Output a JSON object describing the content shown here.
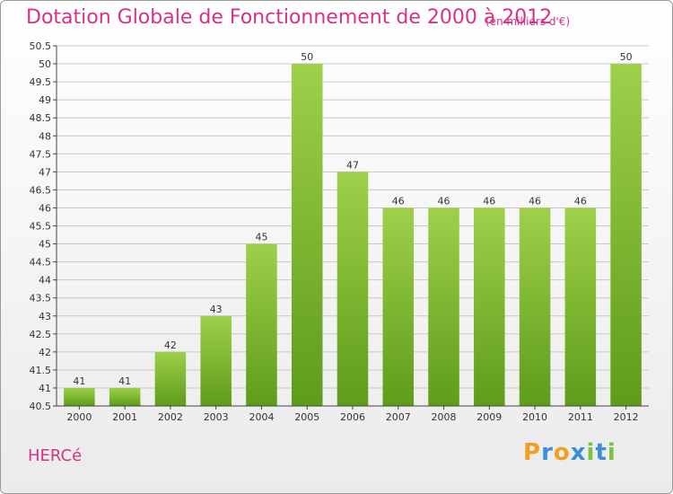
{
  "title": "Dotation Globale de Fonctionnement de 2000 à 2012",
  "subtitle": "(en milliers d'€)",
  "commune": "HERCé",
  "logo": {
    "letters": [
      "P",
      "r",
      "o",
      "x",
      "i",
      "t",
      "i"
    ],
    "colors": [
      "#f0a020",
      "#3a8fd8",
      "#f0a020",
      "#3a8fd8",
      "#7cc242",
      "#3a8fd8",
      "#7cc242"
    ]
  },
  "colors": {
    "title": "#d63384",
    "bar_light": "#9ed04a",
    "bar_dark": "#5e9c1a",
    "grid": "#c8c8c8",
    "axis": "#444444"
  },
  "chart_data": {
    "type": "bar",
    "title": "Dotation Globale de Fonctionnement de 2000 à 2012",
    "subtitle": "(en milliers d'€)",
    "xlabel": "",
    "ylabel": "",
    "categories": [
      "2000",
      "2001",
      "2002",
      "2003",
      "2004",
      "2005",
      "2006",
      "2007",
      "2008",
      "2009",
      "2010",
      "2011",
      "2012"
    ],
    "values": [
      41,
      41,
      42,
      43,
      45,
      50,
      47,
      46,
      46,
      46,
      46,
      46,
      50
    ],
    "ylim": [
      40.5,
      50.5
    ],
    "yticks": [
      "40.5",
      "41",
      "41.5",
      "42",
      "42.5",
      "43",
      "43.5",
      "44",
      "44.5",
      "45",
      "45.5",
      "46",
      "46.5",
      "47",
      "47.5",
      "48",
      "48.5",
      "49",
      "49.5",
      "50",
      "50.5"
    ],
    "grid": true,
    "data_labels": true
  }
}
